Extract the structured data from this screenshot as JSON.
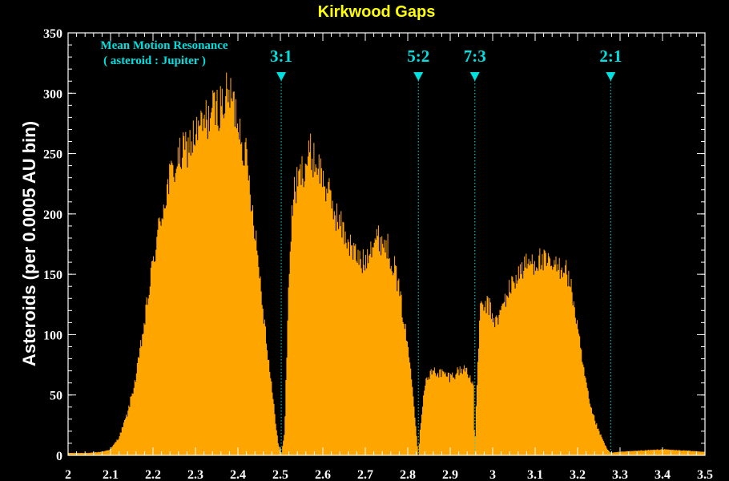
{
  "chart_data": {
    "type": "bar",
    "title": "Kirkwood Gaps",
    "xlabel": "",
    "ylabel": "Asteroids (per 0.0005 AU bin)",
    "xlim": [
      2.0,
      3.5
    ],
    "ylim": [
      0,
      350
    ],
    "x_ticks": [
      2.0,
      2.1,
      2.2,
      2.3,
      2.4,
      2.5,
      2.6,
      2.7,
      2.8,
      2.9,
      3.0,
      3.1,
      3.2,
      3.3,
      3.4,
      3.5
    ],
    "x_tick_labels": [
      "2",
      "2.1",
      "2.2",
      "2.3",
      "2.4",
      "2.5",
      "2.6",
      "2.7",
      "2.8",
      "2.9",
      "3",
      "3.1",
      "3.2",
      "3.3",
      "3.4",
      "3.5"
    ],
    "y_ticks": [
      0,
      50,
      100,
      150,
      200,
      250,
      300,
      350
    ],
    "y_tick_labels": [
      "0",
      "50",
      "100",
      "150",
      "200",
      "250",
      "300",
      "350"
    ],
    "annotation": [
      "Mean Motion Resonance",
      "( asteroid : Jupiter )"
    ],
    "resonances": [
      {
        "label": "3:1",
        "x": 2.502
      },
      {
        "label": "5:2",
        "x": 2.825
      },
      {
        "label": "7:3",
        "x": 2.958
      },
      {
        "label": "2:1",
        "x": 3.278
      }
    ],
    "profile": {
      "x": [
        2.0,
        2.05,
        2.08,
        2.1,
        2.12,
        2.14,
        2.16,
        2.18,
        2.2,
        2.22,
        2.24,
        2.26,
        2.28,
        2.3,
        2.32,
        2.34,
        2.36,
        2.38,
        2.4,
        2.42,
        2.44,
        2.46,
        2.48,
        2.495,
        2.502,
        2.51,
        2.52,
        2.53,
        2.55,
        2.57,
        2.59,
        2.61,
        2.63,
        2.65,
        2.67,
        2.69,
        2.7,
        2.71,
        2.73,
        2.75,
        2.77,
        2.79,
        2.81,
        2.82,
        2.825,
        2.83,
        2.84,
        2.86,
        2.88,
        2.9,
        2.92,
        2.94,
        2.955,
        2.958,
        2.962,
        2.97,
        2.99,
        3.0,
        3.01,
        3.02,
        3.03,
        3.05,
        3.07,
        3.09,
        3.11,
        3.13,
        3.15,
        3.17,
        3.19,
        3.21,
        3.23,
        3.25,
        3.27,
        3.278,
        3.3,
        3.35,
        3.4,
        3.45,
        3.5
      ],
      "y": [
        2,
        2,
        3,
        5,
        15,
        35,
        65,
        110,
        160,
        200,
        230,
        245,
        255,
        265,
        275,
        285,
        290,
        300,
        280,
        245,
        190,
        120,
        55,
        10,
        0,
        20,
        150,
        215,
        235,
        250,
        240,
        220,
        200,
        185,
        170,
        160,
        160,
        175,
        180,
        175,
        155,
        115,
        65,
        20,
        0,
        25,
        60,
        70,
        68,
        65,
        70,
        72,
        55,
        5,
        50,
        120,
        125,
        115,
        110,
        120,
        130,
        145,
        155,
        160,
        162,
        158,
        155,
        158,
        130,
        80,
        40,
        20,
        5,
        2,
        3,
        4,
        5,
        4,
        3
      ]
    }
  },
  "colors": {
    "background": "#000000",
    "fill": "#ffa500",
    "title": "#ffff00",
    "axis": "#ffffff",
    "resonance": "#00e0e0"
  }
}
